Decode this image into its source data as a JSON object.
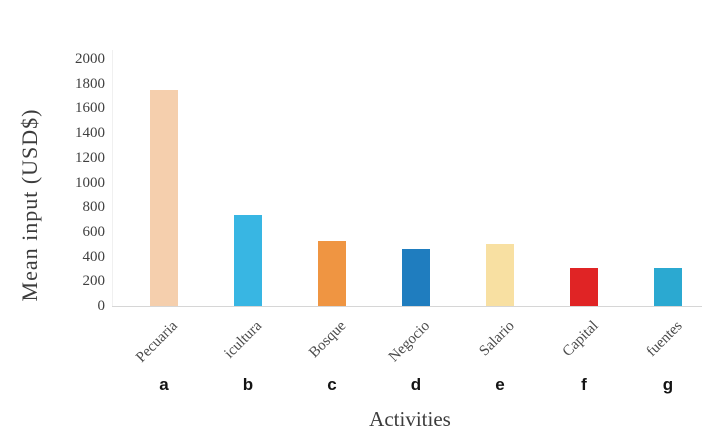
{
  "chart_data": {
    "type": "bar",
    "title": "",
    "xlabel": "Activities",
    "ylabel": "Mean input (USD$)",
    "categories": [
      "Pecuaria",
      "icultura",
      "Bosque",
      "Negocio",
      "Salario",
      "Capital",
      "fuentes"
    ],
    "group_letters": [
      "a",
      "b",
      "c",
      "d",
      "e",
      "f",
      "g"
    ],
    "values": [
      1750,
      740,
      525,
      465,
      505,
      310,
      310
    ],
    "bar_colors": [
      "#f5cfad",
      "#38b6e3",
      "#ef9542",
      "#1f7dbf",
      "#f8e0a2",
      "#e02425",
      "#2ba9d1"
    ],
    "ylim": [
      0,
      2000
    ],
    "ytick_step": 200,
    "yticks": [
      0,
      200,
      400,
      600,
      800,
      1000,
      1200,
      1400,
      1600,
      1800,
      2000
    ],
    "grid": false,
    "legend": false
  }
}
